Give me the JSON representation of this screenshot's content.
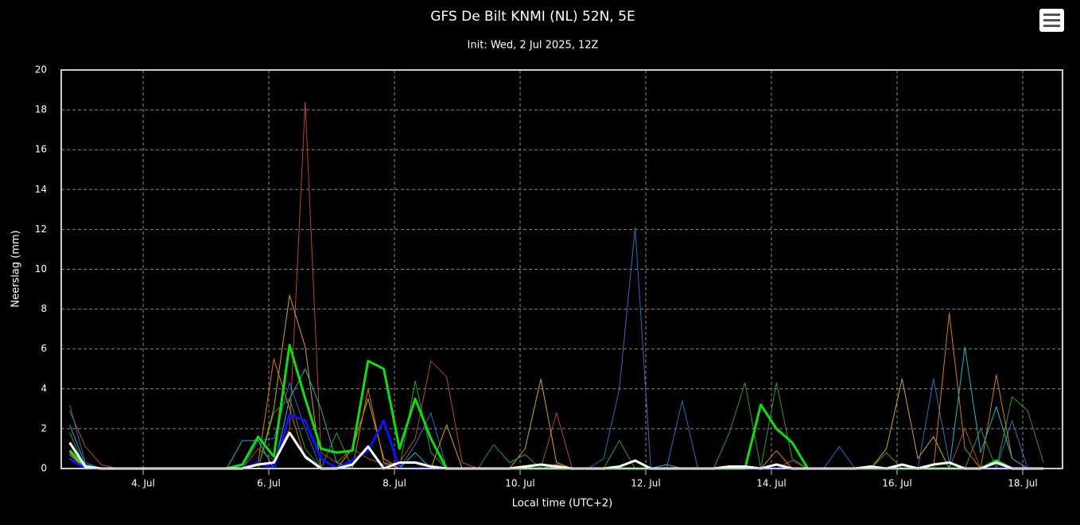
{
  "chart_data": {
    "type": "line",
    "title": "GFS De Bilt KNMI (NL) 52N, 5E",
    "subtitle": "Init: Wed, 2 Jul 2025, 12Z",
    "x_label": "Local time (UTC+2)",
    "y_label": "Neerslag (mm)",
    "x": [
      2.83,
      3.08,
      3.33,
      3.58,
      3.83,
      4.08,
      4.33,
      4.58,
      4.83,
      5.08,
      5.33,
      5.58,
      5.83,
      6.08,
      6.33,
      6.58,
      6.83,
      7.08,
      7.33,
      7.58,
      7.83,
      8.08,
      8.33,
      8.58,
      8.83,
      9.08,
      9.33,
      9.58,
      9.83,
      10.08,
      10.33,
      10.58,
      10.83,
      11.08,
      11.33,
      11.58,
      11.83,
      12.08,
      12.33,
      12.58,
      12.83,
      13.08,
      13.33,
      13.58,
      13.83,
      14.08,
      14.33,
      14.58,
      14.83,
      15.08,
      15.33,
      15.58,
      15.83,
      16.08,
      16.33,
      16.58,
      16.83,
      17.08,
      17.33,
      17.58,
      17.83,
      18.08,
      18.33
    ],
    "xlim": [
      2.696,
      18.633
    ],
    "xticks": [
      {
        "value": 4,
        "label": "4. Jul"
      },
      {
        "value": 6,
        "label": "6. Jul"
      },
      {
        "value": 8,
        "label": "8. Jul"
      },
      {
        "value": 10,
        "label": "10. Jul"
      },
      {
        "value": 12,
        "label": "12. Jul"
      },
      {
        "value": 14,
        "label": "14. Jul"
      },
      {
        "value": 16,
        "label": "16. Jul"
      },
      {
        "value": 18,
        "label": "18. Jul"
      }
    ],
    "ylim": [
      0,
      20
    ],
    "yticks": [
      0,
      2,
      4,
      6,
      8,
      10,
      12,
      14,
      16,
      18,
      20
    ],
    "grid": true,
    "series": [
      {
        "color": "#b84a2a",
        "line_width": 1,
        "values": [
          2.9,
          1.1,
          0.2,
          0,
          0,
          0,
          0,
          0,
          0,
          0,
          0,
          0,
          1.0,
          0.4,
          2.0,
          18.4,
          0.8,
          0.3,
          1.0,
          0.5,
          0.2,
          0.3,
          1.5,
          5.4,
          4.6,
          0.3,
          0,
          0,
          0,
          0,
          0,
          2.8,
          0,
          0,
          0,
          0,
          0,
          0,
          0,
          0,
          0,
          0,
          0,
          0,
          0,
          0,
          0.4,
          0,
          0,
          0,
          0,
          0,
          0,
          0,
          0,
          0,
          0,
          2.0,
          0,
          0,
          0,
          0,
          0
        ]
      },
      {
        "color": "#2a6fbf",
        "line_width": 1,
        "values": [
          3.2,
          0.3,
          0,
          0,
          0,
          0,
          0,
          0,
          0,
          0,
          0,
          0,
          1.4,
          1.5,
          4.3,
          2.0,
          0,
          0,
          0,
          0,
          0,
          0,
          1.2,
          2.8,
          0,
          0,
          0,
          0,
          0,
          0,
          0,
          0,
          0,
          0,
          0.5,
          4.0,
          12.1,
          0,
          0,
          3.4,
          0,
          0,
          0,
          0,
          0,
          0,
          0,
          0,
          0,
          1.1,
          0,
          0,
          0,
          0,
          0,
          4.5,
          0.3,
          0,
          0,
          0,
          2.4,
          0,
          0
        ]
      },
      {
        "color": "#d4a520",
        "line_width": 1,
        "values": [
          0.7,
          0,
          0,
          0,
          0,
          0,
          0,
          0,
          0,
          0,
          0,
          0,
          0,
          3.0,
          8.7,
          6.1,
          0,
          0,
          1.0,
          3.5,
          0.5,
          0,
          0,
          0,
          2.2,
          0,
          0,
          0,
          0,
          1.0,
          4.5,
          0.3,
          0,
          0,
          0,
          0,
          0,
          0,
          0,
          0,
          0,
          0,
          0,
          0,
          0,
          0,
          0,
          0,
          0,
          0,
          0,
          0,
          1.0,
          4.5,
          0.5,
          1.6,
          0,
          0,
          0,
          0,
          0,
          0,
          0
        ]
      },
      {
        "color": "#d87a1a",
        "line_width": 1,
        "values": [
          0.8,
          0,
          0,
          0,
          0,
          0,
          0,
          0,
          0,
          0,
          0,
          0,
          0.3,
          5.5,
          3.0,
          0.5,
          0,
          0,
          0,
          4.0,
          0.3,
          0,
          0,
          0,
          0,
          0,
          0,
          0,
          0,
          0,
          0,
          0.2,
          0,
          0,
          0,
          0,
          0,
          0,
          0,
          0,
          0,
          0,
          0,
          0,
          0,
          0.9,
          0,
          0,
          0,
          0,
          0,
          0,
          0,
          0,
          0,
          0,
          7.8,
          1.0,
          0,
          4.7,
          0.5,
          0,
          0
        ]
      },
      {
        "color": "#22b3c8",
        "line_width": 1,
        "values": [
          2.2,
          0.2,
          0,
          0,
          0,
          0,
          0,
          0,
          0,
          0,
          0,
          1.4,
          1.4,
          0,
          3.5,
          5.0,
          3.0,
          0.3,
          0,
          0,
          0,
          0,
          0.8,
          0,
          0,
          0,
          0,
          0,
          0,
          0,
          0.2,
          0,
          0,
          0,
          0,
          0,
          0,
          0,
          0.2,
          0,
          0,
          0,
          0,
          0,
          0,
          0,
          0,
          0,
          0,
          0,
          0,
          0,
          0,
          0,
          0,
          0,
          0,
          6.1,
          0.8,
          3.1,
          0.5,
          0,
          0
        ]
      },
      {
        "color": "#2f9a2f",
        "line_width": 1,
        "values": [
          1.8,
          0,
          0,
          0,
          0,
          0,
          0,
          0,
          0,
          0,
          0,
          0,
          0,
          2.8,
          3.5,
          1.0,
          0,
          1.8,
          0,
          0,
          0,
          0,
          4.4,
          0.8,
          0,
          0,
          0,
          1.2,
          0.3,
          0.7,
          0,
          0,
          0,
          0,
          0,
          1.4,
          0,
          0,
          0,
          0,
          0,
          0,
          1.8,
          4.3,
          0,
          4.3,
          0.5,
          0,
          0,
          0,
          0,
          0,
          0.8,
          0,
          0,
          0,
          0,
          0,
          2.0,
          0,
          3.6,
          2.9,
          0.3
        ]
      },
      {
        "color": "#1010ff",
        "line_width": 3,
        "values": [
          0.5,
          0,
          0,
          0,
          0,
          0,
          0,
          0,
          0,
          0,
          0,
          0,
          0.3,
          0,
          2.7,
          2.4,
          0.5,
          0,
          0.4,
          0.9,
          2.4,
          0,
          0,
          0,
          0,
          0,
          0,
          0,
          0,
          0,
          0,
          0,
          0,
          0,
          0,
          0,
          0,
          0,
          0,
          0,
          0,
          0,
          0,
          0,
          0,
          0,
          0,
          0,
          0,
          0,
          0,
          0,
          0,
          0,
          0,
          0,
          0,
          0,
          0,
          0,
          0,
          0,
          0
        ]
      },
      {
        "color": "#11dd11",
        "line_width": 3,
        "values": [
          0.9,
          0.1,
          0,
          0,
          0,
          0,
          0,
          0,
          0,
          0,
          0,
          0.2,
          1.6,
          0.6,
          6.2,
          3.5,
          1.0,
          0.8,
          0.9,
          5.4,
          5.0,
          1.0,
          3.5,
          1.5,
          0,
          0,
          0,
          0,
          0,
          0,
          0,
          0,
          0,
          0,
          0,
          0,
          0,
          0,
          0,
          0,
          0,
          0,
          0,
          0,
          3.2,
          2.0,
          1.3,
          0,
          0,
          0,
          0,
          0,
          0,
          0,
          0,
          0,
          0,
          0,
          0,
          0.4,
          0,
          0,
          0
        ]
      },
      {
        "color": "#ffffff",
        "line_width": 3,
        "values": [
          1.3,
          0.1,
          0,
          0,
          0,
          0,
          0,
          0,
          0,
          0,
          0,
          0,
          0.2,
          0.3,
          1.8,
          0.6,
          0,
          0,
          0.2,
          1.1,
          0,
          0.3,
          0.3,
          0.1,
          0,
          0,
          0,
          0,
          0,
          0.1,
          0.2,
          0.1,
          0,
          0,
          0,
          0.1,
          0.4,
          0,
          0,
          0,
          0,
          0,
          0.1,
          0.1,
          0,
          0.2,
          0,
          0,
          0,
          0,
          0,
          0.1,
          0,
          0.2,
          0,
          0.2,
          0.3,
          0,
          0,
          0.3,
          0,
          0,
          0
        ]
      }
    ]
  }
}
